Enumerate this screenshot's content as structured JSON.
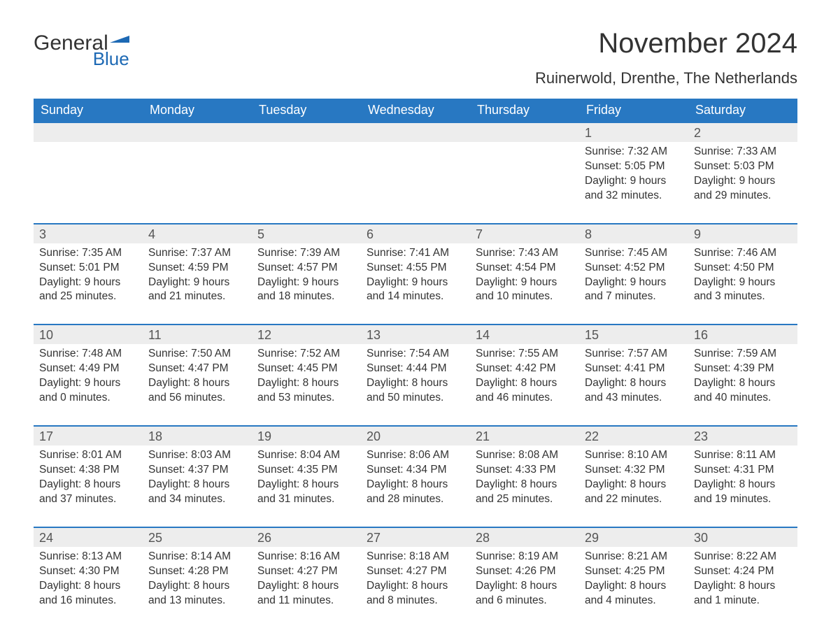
{
  "brand": {
    "general": "General",
    "blue": "Blue",
    "flag_color": "#1d69b4",
    "text_color_dark": "#333333"
  },
  "header": {
    "month_title": "November 2024",
    "location": "Ruinerwold, Drenthe, The Netherlands"
  },
  "colors": {
    "header_bg": "#2878c2",
    "header_text": "#ffffff",
    "daynum_bg": "#ededed",
    "week_border": "#2878c2",
    "body_text": "#333333",
    "background": "#ffffff"
  },
  "typography": {
    "month_title_fontsize": 40,
    "location_fontsize": 22,
    "weekday_fontsize": 18,
    "daynum_fontsize": 18,
    "details_fontsize": 15.5,
    "font_family": "Arial"
  },
  "weekdays": [
    "Sunday",
    "Monday",
    "Tuesday",
    "Wednesday",
    "Thursday",
    "Friday",
    "Saturday"
  ],
  "weeks": [
    {
      "days": [
        {
          "num": "",
          "sunrise": "",
          "sunset": "",
          "daylight": ""
        },
        {
          "num": "",
          "sunrise": "",
          "sunset": "",
          "daylight": ""
        },
        {
          "num": "",
          "sunrise": "",
          "sunset": "",
          "daylight": ""
        },
        {
          "num": "",
          "sunrise": "",
          "sunset": "",
          "daylight": ""
        },
        {
          "num": "",
          "sunrise": "",
          "sunset": "",
          "daylight": ""
        },
        {
          "num": "1",
          "sunrise": "Sunrise: 7:32 AM",
          "sunset": "Sunset: 5:05 PM",
          "daylight": "Daylight: 9 hours and 32 minutes."
        },
        {
          "num": "2",
          "sunrise": "Sunrise: 7:33 AM",
          "sunset": "Sunset: 5:03 PM",
          "daylight": "Daylight: 9 hours and 29 minutes."
        }
      ]
    },
    {
      "days": [
        {
          "num": "3",
          "sunrise": "Sunrise: 7:35 AM",
          "sunset": "Sunset: 5:01 PM",
          "daylight": "Daylight: 9 hours and 25 minutes."
        },
        {
          "num": "4",
          "sunrise": "Sunrise: 7:37 AM",
          "sunset": "Sunset: 4:59 PM",
          "daylight": "Daylight: 9 hours and 21 minutes."
        },
        {
          "num": "5",
          "sunrise": "Sunrise: 7:39 AM",
          "sunset": "Sunset: 4:57 PM",
          "daylight": "Daylight: 9 hours and 18 minutes."
        },
        {
          "num": "6",
          "sunrise": "Sunrise: 7:41 AM",
          "sunset": "Sunset: 4:55 PM",
          "daylight": "Daylight: 9 hours and 14 minutes."
        },
        {
          "num": "7",
          "sunrise": "Sunrise: 7:43 AM",
          "sunset": "Sunset: 4:54 PM",
          "daylight": "Daylight: 9 hours and 10 minutes."
        },
        {
          "num": "8",
          "sunrise": "Sunrise: 7:45 AM",
          "sunset": "Sunset: 4:52 PM",
          "daylight": "Daylight: 9 hours and 7 minutes."
        },
        {
          "num": "9",
          "sunrise": "Sunrise: 7:46 AM",
          "sunset": "Sunset: 4:50 PM",
          "daylight": "Daylight: 9 hours and 3 minutes."
        }
      ]
    },
    {
      "days": [
        {
          "num": "10",
          "sunrise": "Sunrise: 7:48 AM",
          "sunset": "Sunset: 4:49 PM",
          "daylight": "Daylight: 9 hours and 0 minutes."
        },
        {
          "num": "11",
          "sunrise": "Sunrise: 7:50 AM",
          "sunset": "Sunset: 4:47 PM",
          "daylight": "Daylight: 8 hours and 56 minutes."
        },
        {
          "num": "12",
          "sunrise": "Sunrise: 7:52 AM",
          "sunset": "Sunset: 4:45 PM",
          "daylight": "Daylight: 8 hours and 53 minutes."
        },
        {
          "num": "13",
          "sunrise": "Sunrise: 7:54 AM",
          "sunset": "Sunset: 4:44 PM",
          "daylight": "Daylight: 8 hours and 50 minutes."
        },
        {
          "num": "14",
          "sunrise": "Sunrise: 7:55 AM",
          "sunset": "Sunset: 4:42 PM",
          "daylight": "Daylight: 8 hours and 46 minutes."
        },
        {
          "num": "15",
          "sunrise": "Sunrise: 7:57 AM",
          "sunset": "Sunset: 4:41 PM",
          "daylight": "Daylight: 8 hours and 43 minutes."
        },
        {
          "num": "16",
          "sunrise": "Sunrise: 7:59 AM",
          "sunset": "Sunset: 4:39 PM",
          "daylight": "Daylight: 8 hours and 40 minutes."
        }
      ]
    },
    {
      "days": [
        {
          "num": "17",
          "sunrise": "Sunrise: 8:01 AM",
          "sunset": "Sunset: 4:38 PM",
          "daylight": "Daylight: 8 hours and 37 minutes."
        },
        {
          "num": "18",
          "sunrise": "Sunrise: 8:03 AM",
          "sunset": "Sunset: 4:37 PM",
          "daylight": "Daylight: 8 hours and 34 minutes."
        },
        {
          "num": "19",
          "sunrise": "Sunrise: 8:04 AM",
          "sunset": "Sunset: 4:35 PM",
          "daylight": "Daylight: 8 hours and 31 minutes."
        },
        {
          "num": "20",
          "sunrise": "Sunrise: 8:06 AM",
          "sunset": "Sunset: 4:34 PM",
          "daylight": "Daylight: 8 hours and 28 minutes."
        },
        {
          "num": "21",
          "sunrise": "Sunrise: 8:08 AM",
          "sunset": "Sunset: 4:33 PM",
          "daylight": "Daylight: 8 hours and 25 minutes."
        },
        {
          "num": "22",
          "sunrise": "Sunrise: 8:10 AM",
          "sunset": "Sunset: 4:32 PM",
          "daylight": "Daylight: 8 hours and 22 minutes."
        },
        {
          "num": "23",
          "sunrise": "Sunrise: 8:11 AM",
          "sunset": "Sunset: 4:31 PM",
          "daylight": "Daylight: 8 hours and 19 minutes."
        }
      ]
    },
    {
      "days": [
        {
          "num": "24",
          "sunrise": "Sunrise: 8:13 AM",
          "sunset": "Sunset: 4:30 PM",
          "daylight": "Daylight: 8 hours and 16 minutes."
        },
        {
          "num": "25",
          "sunrise": "Sunrise: 8:14 AM",
          "sunset": "Sunset: 4:28 PM",
          "daylight": "Daylight: 8 hours and 13 minutes."
        },
        {
          "num": "26",
          "sunrise": "Sunrise: 8:16 AM",
          "sunset": "Sunset: 4:27 PM",
          "daylight": "Daylight: 8 hours and 11 minutes."
        },
        {
          "num": "27",
          "sunrise": "Sunrise: 8:18 AM",
          "sunset": "Sunset: 4:27 PM",
          "daylight": "Daylight: 8 hours and 8 minutes."
        },
        {
          "num": "28",
          "sunrise": "Sunrise: 8:19 AM",
          "sunset": "Sunset: 4:26 PM",
          "daylight": "Daylight: 8 hours and 6 minutes."
        },
        {
          "num": "29",
          "sunrise": "Sunrise: 8:21 AM",
          "sunset": "Sunset: 4:25 PM",
          "daylight": "Daylight: 8 hours and 4 minutes."
        },
        {
          "num": "30",
          "sunrise": "Sunrise: 8:22 AM",
          "sunset": "Sunset: 4:24 PM",
          "daylight": "Daylight: 8 hours and 1 minute."
        }
      ]
    }
  ]
}
